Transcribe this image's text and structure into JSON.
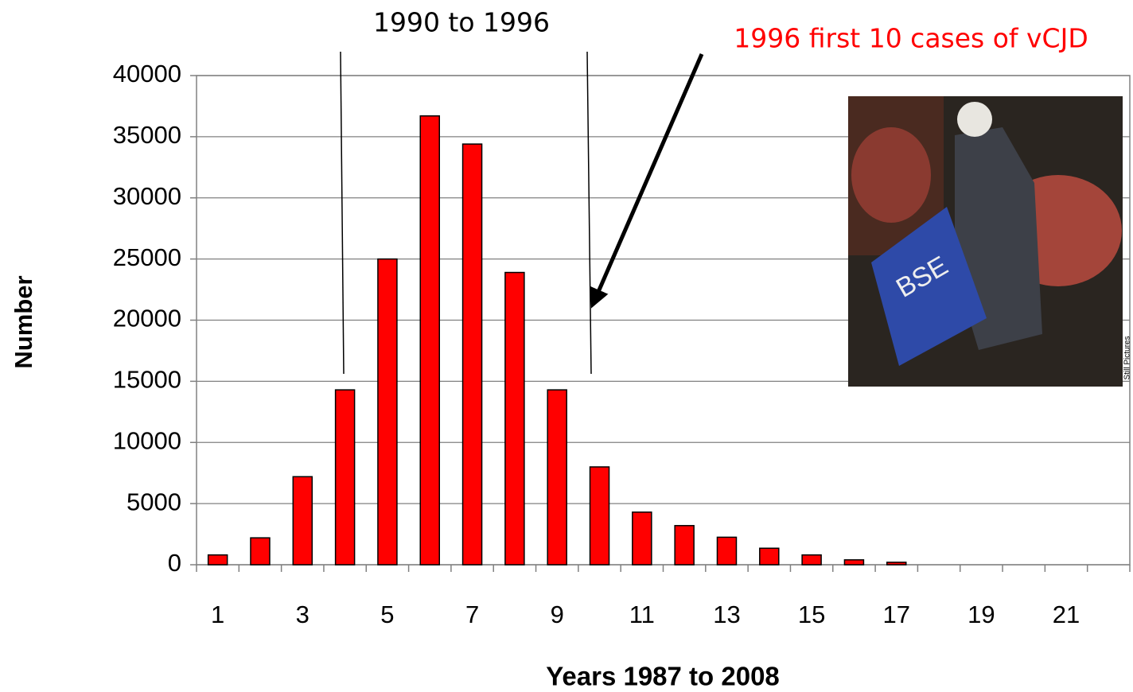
{
  "chart_data": {
    "type": "bar",
    "annotations": [
      "1990 to 1996",
      "1996 first 10 cases of vCJD"
    ],
    "image_credit": "Still Pictures",
    "x_label": "Years 1987 to 2008",
    "y_label": "Number",
    "categories": [
      1,
      null,
      3,
      null,
      5,
      null,
      7,
      null,
      9,
      null,
      11,
      null,
      13,
      null,
      15,
      null,
      17,
      null,
      19,
      null,
      21,
      null
    ],
    "values": [
      800,
      2200,
      7200,
      14300,
      25000,
      36700,
      34400,
      23900,
      14300,
      8000,
      4300,
      3200,
      2250,
      1350,
      800,
      400,
      200,
      0,
      0,
      0,
      0,
      0
    ],
    "color": "#ff0000",
    "ylim": [
      0,
      40000
    ],
    "yticks": [
      0,
      5000,
      10000,
      15000,
      20000,
      25000,
      30000,
      35000,
      40000
    ],
    "grid": true
  }
}
